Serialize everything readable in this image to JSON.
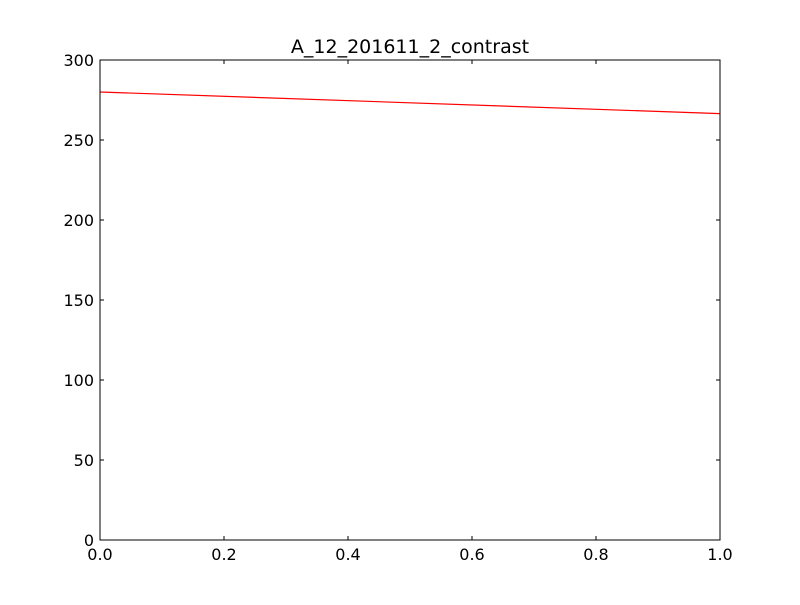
{
  "chart_data": {
    "type": "line",
    "title": "A_12_201611_2_contrast",
    "xlabel": "",
    "ylabel": "",
    "xlim": [
      0.0,
      1.0
    ],
    "ylim": [
      0,
      300
    ],
    "x_ticks": [
      "0.0",
      "0.2",
      "0.4",
      "0.6",
      "0.8",
      "1.0"
    ],
    "y_ticks": [
      "0",
      "50",
      "100",
      "150",
      "200",
      "250",
      "300"
    ],
    "grid": false,
    "legend": "none",
    "series": [
      {
        "color": "#ff0000",
        "x": [
          0.0,
          1.0
        ],
        "y": [
          280,
          266.5
        ]
      }
    ]
  }
}
